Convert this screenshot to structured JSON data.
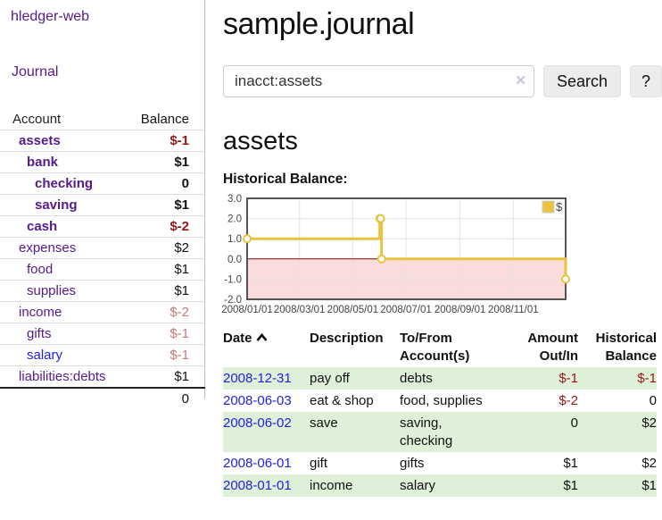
{
  "sidebar": {
    "brand": "hledger-web",
    "nav": {
      "journal": "Journal"
    },
    "accounts_table": {
      "headers": {
        "account": "Account",
        "balance": "Balance"
      },
      "rows": [
        {
          "name": "assets",
          "balance": "$-1"
        },
        {
          "name": "bank",
          "balance": "$1"
        },
        {
          "name": "checking",
          "balance": "0"
        },
        {
          "name": "saving",
          "balance": "$1"
        },
        {
          "name": "cash",
          "balance": "$-2"
        },
        {
          "name": "expenses",
          "balance": "$2"
        },
        {
          "name": "food",
          "balance": "$1"
        },
        {
          "name": "supplies",
          "balance": "$1"
        },
        {
          "name": "income",
          "balance": "$-2"
        },
        {
          "name": "gifts",
          "balance": "$-1"
        },
        {
          "name": "salary",
          "balance": "$-1"
        },
        {
          "name": "liabilities:debts",
          "balance": "$1"
        }
      ],
      "total": "0"
    }
  },
  "header": {
    "title": "sample.journal"
  },
  "search": {
    "value": "inacct:assets",
    "clear_icon": "✕",
    "button_label": "Search",
    "help_label": "?"
  },
  "account_page": {
    "heading": "assets",
    "chart_title": "Historical Balance:"
  },
  "chart_data": {
    "type": "line",
    "title": "Historical Balance:",
    "step": true,
    "xlim": [
      0,
      365
    ],
    "ylim": [
      -2,
      3
    ],
    "y_ticks": [
      "3.0",
      "2.0",
      "1.0",
      "0.0",
      "-1.0",
      "-2.0"
    ],
    "x_ticks": [
      {
        "label": "2008/01/01",
        "day": 0
      },
      {
        "label": "2008/03/01",
        "day": 60
      },
      {
        "label": "2008/05/01",
        "day": 121
      },
      {
        "label": "2008/07/01",
        "day": 182
      },
      {
        "label": "2008/09/01",
        "day": 244
      },
      {
        "label": "2008/11/01",
        "day": 305
      }
    ],
    "series": [
      {
        "name": "$",
        "color": "#e9c340",
        "points": [
          {
            "date": "2008-01-01",
            "day": 0,
            "value": 1
          },
          {
            "date": "2008-06-01",
            "day": 152,
            "value": 2
          },
          {
            "date": "2008-06-02",
            "day": 153,
            "value": 2
          },
          {
            "date": "2008-06-03",
            "day": 154,
            "value": 0
          },
          {
            "date": "2008-12-31",
            "day": 365,
            "value": -1
          }
        ]
      }
    ],
    "legend": {
      "label": "$",
      "position": "top-right"
    },
    "grid": true,
    "grid_color": "#e3e3e3",
    "border_color": "#545454",
    "zero_line_color": "#8b0000",
    "negative_region_color": "#fbdcdc",
    "tick_color": "#444444"
  },
  "transactions": {
    "headers": {
      "date": "Date",
      "description": "Description",
      "tofrom": "To/From Account(s)",
      "amount": "Amount Out/In",
      "balance": "Historical Balance"
    },
    "rows": [
      {
        "date": "2008-12-31",
        "description": "pay off",
        "tofrom": "debts",
        "amount": "$-1",
        "balance": "$-1"
      },
      {
        "date": "2008-06-03",
        "description": "eat & shop",
        "tofrom": "food, supplies",
        "amount": "$-2",
        "balance": "0"
      },
      {
        "date": "2008-06-02",
        "description": "save",
        "tofrom": "saving, checking",
        "amount": "0",
        "balance": "$2"
      },
      {
        "date": "2008-06-01",
        "description": "gift",
        "tofrom": "gifts",
        "amount": "$1",
        "balance": "$2"
      },
      {
        "date": "2008-01-01",
        "description": "income",
        "tofrom": "salary",
        "amount": "$1",
        "balance": "$1"
      }
    ]
  },
  "colors": {
    "link_purple": "#551a8b",
    "link_blue": "#2222dd",
    "negative_red": "#971717",
    "muted_negative_red": "#c47a7a",
    "row_stripe_green": "#dff0d8",
    "series_yellow": "#e9c340"
  }
}
